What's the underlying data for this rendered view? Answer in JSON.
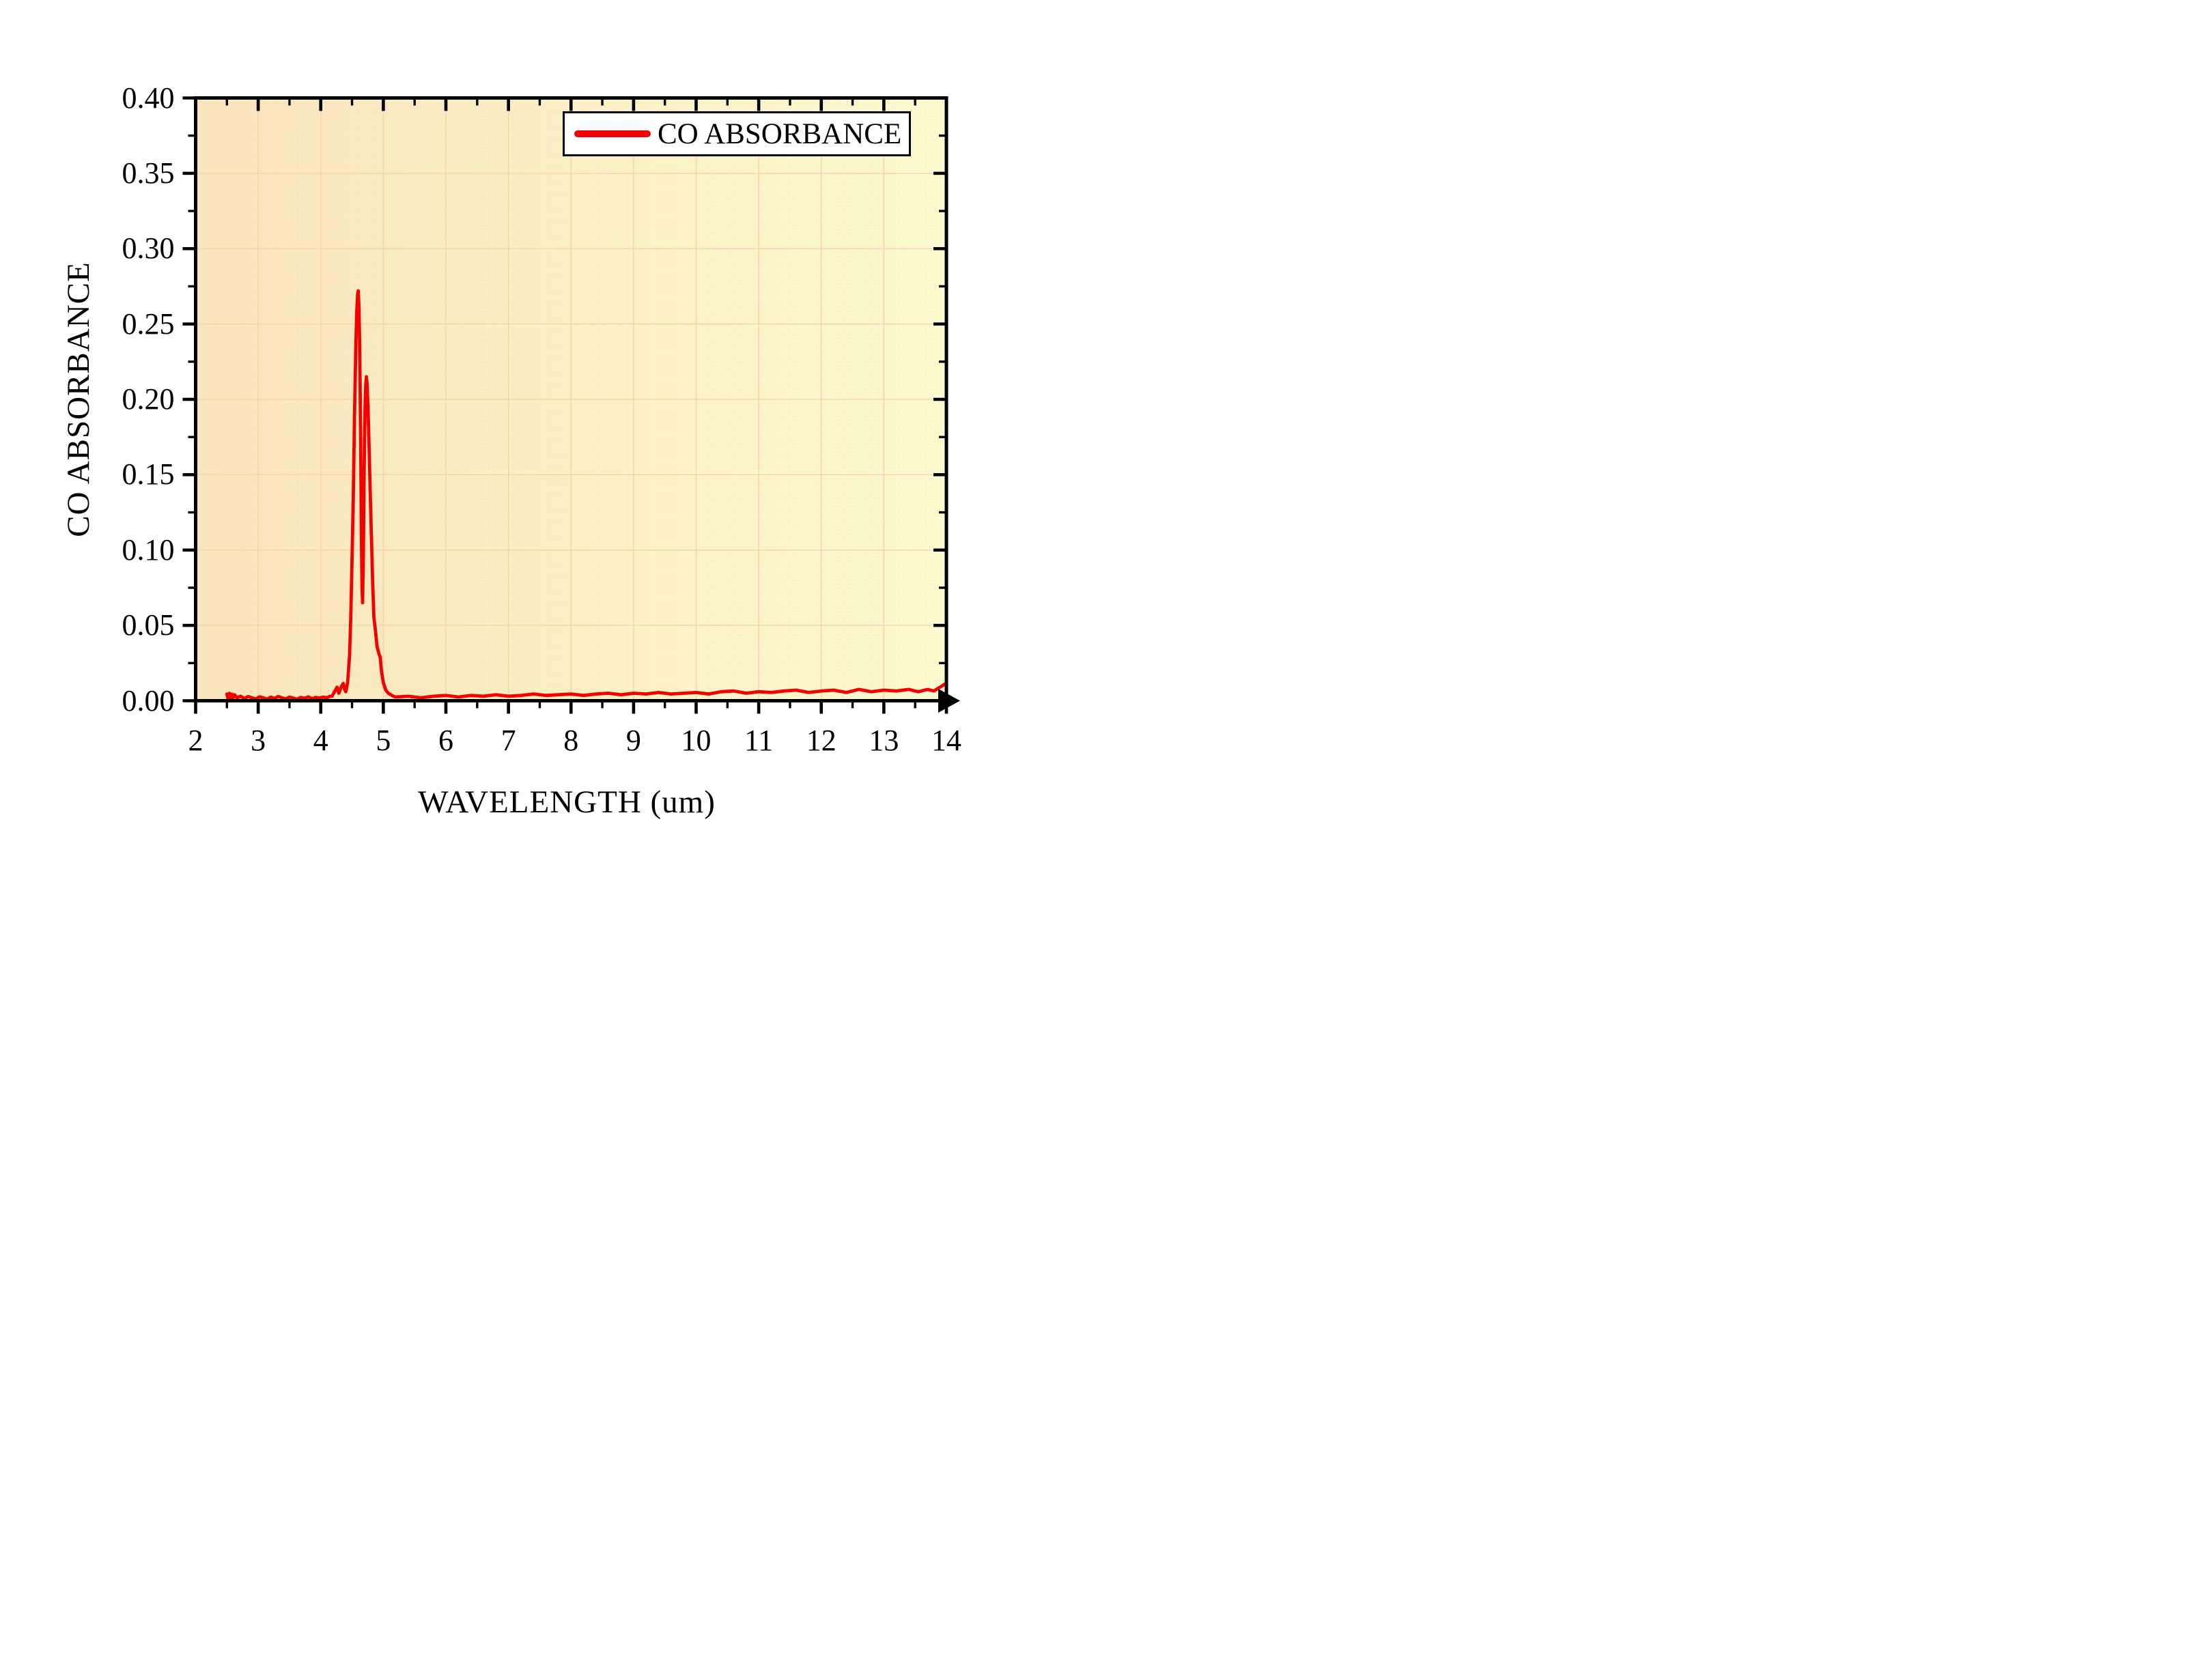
{
  "figure": {
    "background_color": "#ffffff",
    "plot_bg_left_color": "#fae5bd",
    "plot_bg_right_color": "#fcfacf",
    "grid_color": "#f6cf9f",
    "axis_color": "#000000",
    "text_color": "#000000"
  },
  "legend": {
    "label": "CO ABSORBANCE",
    "line_color": "#f50000",
    "position": "top-right"
  },
  "chart_data": {
    "type": "line",
    "title": "",
    "xlabel": "WAVELENGTH (um)",
    "ylabel": "CO ABSORBANCE",
    "xlim": [
      2,
      14
    ],
    "ylim": [
      0,
      0.4
    ],
    "grid": true,
    "x_major_ticks": [
      2,
      3,
      4,
      5,
      6,
      7,
      8,
      9,
      10,
      11,
      12,
      13,
      14
    ],
    "x_tick_labels": [
      "2",
      "3",
      "4",
      "5",
      "6",
      "7",
      "8",
      "9",
      "10",
      "11",
      "12",
      "13",
      "14"
    ],
    "x_minor_ticks": [
      2.5,
      3.5,
      4.5,
      5.5,
      6.5,
      7.5,
      8.5,
      9.5,
      10.5,
      11.5,
      12.5,
      13.5
    ],
    "y_major_ticks": [
      0.0,
      0.05,
      0.1,
      0.15,
      0.2,
      0.25,
      0.3,
      0.35,
      0.4
    ],
    "y_tick_labels": [
      "0.00",
      "0.05",
      "0.10",
      "0.15",
      "0.20",
      "0.25",
      "0.30",
      "0.35",
      "0.40"
    ],
    "y_minor_ticks": [
      0.025,
      0.075,
      0.125,
      0.175,
      0.225,
      0.275,
      0.325,
      0.375
    ],
    "legend_position": "top-right",
    "series": [
      {
        "name": "CO ABSORBANCE",
        "color": "#f50000",
        "points": [
          [
            2.5,
            0.0045
          ],
          [
            2.52,
            0.0012
          ],
          [
            2.54,
            0.005
          ],
          [
            2.56,
            0.0016
          ],
          [
            2.58,
            0.0044
          ],
          [
            2.6,
            0.002
          ],
          [
            2.62,
            0.004
          ],
          [
            2.66,
            0.002
          ],
          [
            2.72,
            0.003
          ],
          [
            2.78,
            0.0015
          ],
          [
            2.84,
            0.0028
          ],
          [
            2.9,
            0.002
          ],
          [
            2.96,
            0.0012
          ],
          [
            3.02,
            0.0026
          ],
          [
            3.08,
            0.002
          ],
          [
            3.14,
            0.001
          ],
          [
            3.2,
            0.0024
          ],
          [
            3.26,
            0.0016
          ],
          [
            3.32,
            0.0028
          ],
          [
            3.38,
            0.002
          ],
          [
            3.44,
            0.0012
          ],
          [
            3.5,
            0.0024
          ],
          [
            3.56,
            0.0018
          ],
          [
            3.62,
            0.001
          ],
          [
            3.68,
            0.0022
          ],
          [
            3.74,
            0.0016
          ],
          [
            3.8,
            0.0026
          ],
          [
            3.86,
            0.0014
          ],
          [
            3.92,
            0.0022
          ],
          [
            3.98,
            0.0018
          ],
          [
            4.04,
            0.0024
          ],
          [
            4.1,
            0.002
          ],
          [
            4.15,
            0.003
          ],
          [
            4.18,
            0.003
          ],
          [
            4.22,
            0.006
          ],
          [
            4.26,
            0.009
          ],
          [
            4.29,
            0.005
          ],
          [
            4.33,
            0.0095
          ],
          [
            4.36,
            0.0115
          ],
          [
            4.38,
            0.0075
          ],
          [
            4.4,
            0.006
          ],
          [
            4.43,
            0.012
          ],
          [
            4.46,
            0.03
          ],
          [
            4.48,
            0.055
          ],
          [
            4.5,
            0.095
          ],
          [
            4.52,
            0.135
          ],
          [
            4.54,
            0.19
          ],
          [
            4.56,
            0.235
          ],
          [
            4.575,
            0.258
          ],
          [
            4.59,
            0.27
          ],
          [
            4.6,
            0.272
          ],
          [
            4.61,
            0.262
          ],
          [
            4.62,
            0.24
          ],
          [
            4.63,
            0.205
          ],
          [
            4.64,
            0.16
          ],
          [
            4.65,
            0.11
          ],
          [
            4.66,
            0.075
          ],
          [
            4.668,
            0.065
          ],
          [
            4.68,
            0.095
          ],
          [
            4.69,
            0.14
          ],
          [
            4.7,
            0.175
          ],
          [
            4.71,
            0.198
          ],
          [
            4.72,
            0.21
          ],
          [
            4.73,
            0.215
          ],
          [
            4.74,
            0.21
          ],
          [
            4.755,
            0.195
          ],
          [
            4.77,
            0.172
          ],
          [
            4.79,
            0.14
          ],
          [
            4.81,
            0.108
          ],
          [
            4.83,
            0.078
          ],
          [
            4.85,
            0.055
          ],
          [
            4.87,
            0.048
          ],
          [
            4.9,
            0.036
          ],
          [
            4.93,
            0.031
          ],
          [
            4.95,
            0.029
          ],
          [
            4.97,
            0.02
          ],
          [
            5.0,
            0.012
          ],
          [
            5.04,
            0.007
          ],
          [
            5.08,
            0.005
          ],
          [
            5.12,
            0.004
          ],
          [
            5.16,
            0.003
          ],
          [
            5.2,
            0.0025
          ],
          [
            5.4,
            0.003
          ],
          [
            5.6,
            0.002
          ],
          [
            5.8,
            0.003
          ],
          [
            6.0,
            0.0035
          ],
          [
            6.2,
            0.0025
          ],
          [
            6.4,
            0.0035
          ],
          [
            6.6,
            0.003
          ],
          [
            6.8,
            0.004
          ],
          [
            7.0,
            0.003
          ],
          [
            7.2,
            0.0035
          ],
          [
            7.4,
            0.0045
          ],
          [
            7.6,
            0.0035
          ],
          [
            7.8,
            0.004
          ],
          [
            8.0,
            0.0045
          ],
          [
            8.2,
            0.0035
          ],
          [
            8.4,
            0.0045
          ],
          [
            8.6,
            0.005
          ],
          [
            8.8,
            0.004
          ],
          [
            9.0,
            0.005
          ],
          [
            9.2,
            0.0045
          ],
          [
            9.4,
            0.0055
          ],
          [
            9.6,
            0.0045
          ],
          [
            9.8,
            0.005
          ],
          [
            10.0,
            0.0055
          ],
          [
            10.2,
            0.0045
          ],
          [
            10.4,
            0.006
          ],
          [
            10.6,
            0.0065
          ],
          [
            10.8,
            0.005
          ],
          [
            11.0,
            0.006
          ],
          [
            11.2,
            0.0055
          ],
          [
            11.4,
            0.0065
          ],
          [
            11.6,
            0.007
          ],
          [
            11.8,
            0.0055
          ],
          [
            12.0,
            0.0065
          ],
          [
            12.2,
            0.007
          ],
          [
            12.4,
            0.0055
          ],
          [
            12.6,
            0.0075
          ],
          [
            12.8,
            0.006
          ],
          [
            13.0,
            0.007
          ],
          [
            13.2,
            0.0065
          ],
          [
            13.4,
            0.0075
          ],
          [
            13.55,
            0.006
          ],
          [
            13.7,
            0.0075
          ],
          [
            13.8,
            0.0065
          ],
          [
            13.9,
            0.009
          ],
          [
            13.97,
            0.011
          ]
        ]
      }
    ]
  }
}
